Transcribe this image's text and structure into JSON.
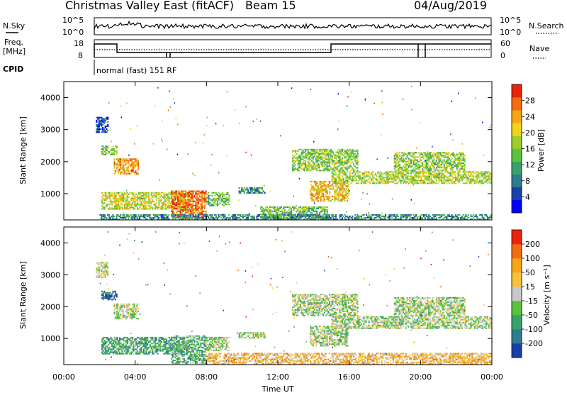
{
  "header": {
    "title": "Christmas Valley East (fitACF)",
    "beam": "Beam 15",
    "date": "04/Aug/2019"
  },
  "top_panels": {
    "nsky_label": "N.Sky",
    "nsky_ticks": [
      "10^5",
      "10^0"
    ],
    "nsearch_label": "N.Search",
    "nsearch_ticks": [
      "10^5",
      "10^0"
    ],
    "freq_label_1": "Freq.",
    "freq_label_2": "[MHz]",
    "freq_ticks": [
      "18",
      "8"
    ],
    "nave_label": "Nave",
    "nave_ticks": [
      "60",
      "0"
    ],
    "cpid_label": "CPID",
    "cpid_text": "normal (fast) 151 RF"
  },
  "chart_data": [
    {
      "type": "heatmap",
      "name": "power",
      "ylabel": "Slant Range [km]",
      "yticks": [
        "4000",
        "3000",
        "2000",
        "1000"
      ],
      "ylim": [
        180,
        4500
      ],
      "xlim": [
        0,
        24
      ],
      "colorbar": {
        "label": "Power [dB]",
        "ticks": [
          "28",
          "24",
          "20",
          "16",
          "12",
          "8",
          "4"
        ],
        "colors": [
          "#0000ff",
          "#1b3fa8",
          "#2e7d8f",
          "#3aa06a",
          "#5cc23c",
          "#9ccf2b",
          "#f2d21a",
          "#f5a516",
          "#f26c10",
          "#e8240c"
        ]
      },
      "regions": [
        {
          "t0": 1.8,
          "t1": 2.5,
          "r0": 2900,
          "r1": 3400,
          "level": 0.15
        },
        {
          "t0": 2.1,
          "t1": 3.0,
          "r0": 2200,
          "r1": 2500,
          "level": 0.45
        },
        {
          "t0": 2.8,
          "t1": 4.2,
          "r0": 1600,
          "r1": 2100,
          "level": 0.75
        },
        {
          "t0": 2.1,
          "t1": 7.0,
          "r0": 500,
          "r1": 1050,
          "level": 0.6
        },
        {
          "t0": 6.0,
          "t1": 8.0,
          "r0": 200,
          "r1": 1100,
          "level": 0.85
        },
        {
          "t0": 8.0,
          "t1": 9.3,
          "r0": 600,
          "r1": 1050,
          "level": 0.45
        },
        {
          "t0": 9.8,
          "t1": 11.3,
          "r0": 1000,
          "r1": 1200,
          "level": 0.3
        },
        {
          "t0": 11.0,
          "t1": 14.8,
          "r0": 200,
          "r1": 600,
          "level": 0.45
        },
        {
          "t0": 12.8,
          "t1": 16.5,
          "r0": 1700,
          "r1": 2400,
          "level": 0.5
        },
        {
          "t0": 13.8,
          "t1": 16.0,
          "r0": 750,
          "r1": 1400,
          "level": 0.7
        },
        {
          "t0": 15.0,
          "t1": 24.0,
          "r0": 1300,
          "r1": 1700,
          "level": 0.55
        },
        {
          "t0": 18.5,
          "t1": 22.5,
          "r0": 1700,
          "r1": 2300,
          "level": 0.5
        },
        {
          "t0": 2.0,
          "t1": 24.0,
          "r0": 180,
          "r1": 360,
          "level": 0.3
        }
      ]
    },
    {
      "type": "heatmap",
      "name": "velocity",
      "ylabel": "Slant Range [km]",
      "yticks": [
        "4000",
        "3000",
        "2000",
        "1000"
      ],
      "ylim": [
        180,
        4500
      ],
      "xlim": [
        0,
        24
      ],
      "xticks": [
        "00:00",
        "04:00",
        "08:00",
        "12:00",
        "16:00",
        "20:00",
        "00:00"
      ],
      "xlabel": "Time UT",
      "colorbar": {
        "label": "Velocity [m s⁻¹]",
        "ticks": [
          "200",
          "100",
          "50",
          "15",
          "-15",
          "-50",
          "-100",
          "-200"
        ],
        "colors": [
          "#1a3fa8",
          "#2e7d8f",
          "#3aa06a",
          "#5cc23c",
          "#c8c8c8",
          "#f5c23a",
          "#f5a516",
          "#f26c10",
          "#e8240c"
        ]
      },
      "regions": [
        {
          "t0": 1.8,
          "t1": 2.5,
          "r0": 2900,
          "r1": 3400,
          "level": 0.5
        },
        {
          "t0": 2.1,
          "t1": 3.0,
          "r0": 2200,
          "r1": 2500,
          "level": 0.1
        },
        {
          "t0": 2.8,
          "t1": 4.2,
          "r0": 1600,
          "r1": 2100,
          "level": 0.45
        },
        {
          "t0": 2.1,
          "t1": 7.0,
          "r0": 500,
          "r1": 1050,
          "level": 0.3
        },
        {
          "t0": 6.0,
          "t1": 8.0,
          "r0": 200,
          "r1": 1100,
          "level": 0.35
        },
        {
          "t0": 8.0,
          "t1": 9.3,
          "r0": 600,
          "r1": 1050,
          "level": 0.45
        },
        {
          "t0": 9.8,
          "t1": 11.3,
          "r0": 1000,
          "r1": 1200,
          "level": 0.45
        },
        {
          "t0": 8.0,
          "t1": 24.0,
          "r0": 180,
          "r1": 550,
          "level": 0.65
        },
        {
          "t0": 12.8,
          "t1": 16.5,
          "r0": 1700,
          "r1": 2400,
          "level": 0.45
        },
        {
          "t0": 13.8,
          "t1": 16.0,
          "r0": 750,
          "r1": 1400,
          "level": 0.45
        },
        {
          "t0": 15.0,
          "t1": 24.0,
          "r0": 1300,
          "r1": 1700,
          "level": 0.45
        },
        {
          "t0": 18.5,
          "t1": 22.5,
          "r0": 1700,
          "r1": 2300,
          "level": 0.45
        }
      ]
    }
  ]
}
